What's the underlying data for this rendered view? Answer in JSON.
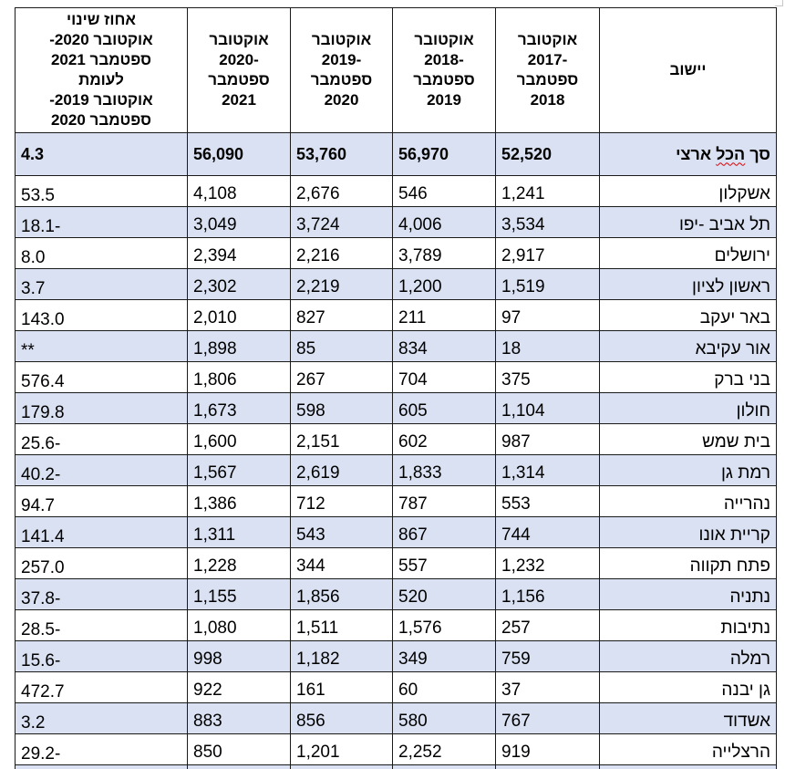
{
  "headers": {
    "locality": "יישוב",
    "p2017": [
      "אוקטובר",
      "-2017",
      "ספטמבר",
      "2018"
    ],
    "p2018": [
      "אוקטובר",
      "-2018",
      "ספטמבר",
      "2019"
    ],
    "p2019": [
      "אוקטובר",
      "-2019",
      "ספטמבר",
      "2020"
    ],
    "p2020": [
      "אוקטובר",
      "-2020",
      "ספטמבר",
      "2021"
    ],
    "change": [
      "אחוז שינוי",
      "אוקטובר 2020-",
      "ספטמבר 2021",
      "לעומת",
      "אוקטובר 2019-",
      "ספטמבר 2020"
    ]
  },
  "total": {
    "label_pre": "סך ",
    "label_squiggle": "הכל",
    "label_post": " ארצי",
    "p2017": "52,520",
    "p2018": "56,970",
    "p2019": "53,760",
    "p2020": "56,090",
    "change": "4.3"
  },
  "rows": [
    {
      "name": "אשקלון",
      "p2017": "1,241",
      "p2018": "546",
      "p2019": "2,676",
      "p2020": "4,108",
      "change": "53.5",
      "shaded": false
    },
    {
      "name": "תל אביב -יפו",
      "p2017": "3,534",
      "p2018": "4,006",
      "p2019": "3,724",
      "p2020": "3,049",
      "change": "-18.1",
      "shaded": true
    },
    {
      "name": "ירושלים",
      "p2017": "2,917",
      "p2018": "3,789",
      "p2019": "2,216",
      "p2020": "2,394",
      "change": "8.0",
      "shaded": false
    },
    {
      "name": "ראשון לציון",
      "p2017": "1,519",
      "p2018": "1,200",
      "p2019": "2,219",
      "p2020": "2,302",
      "change": "3.7",
      "shaded": true
    },
    {
      "name": "באר יעקב",
      "p2017": "97",
      "p2018": "211",
      "p2019": "827",
      "p2020": "2,010",
      "change": "143.0",
      "shaded": false
    },
    {
      "name": "אור עקיבא",
      "p2017": "18",
      "p2018": "834",
      "p2019": "85",
      "p2020": "1,898",
      "change": "**",
      "shaded": true
    },
    {
      "name": "בני ברק",
      "p2017": "375",
      "p2018": "704",
      "p2019": "267",
      "p2020": "1,806",
      "change": "576.4",
      "shaded": false
    },
    {
      "name": "חולון",
      "p2017": "1,104",
      "p2018": "605",
      "p2019": "598",
      "p2020": "1,673",
      "change": "179.8",
      "shaded": true
    },
    {
      "name": "בית שמש",
      "p2017": "987",
      "p2018": "602",
      "p2019": "2,151",
      "p2020": "1,600",
      "change": "-25.6",
      "shaded": false
    },
    {
      "name": "רמת גן",
      "p2017": "1,314",
      "p2018": "1,833",
      "p2019": "2,619",
      "p2020": "1,567",
      "change": "-40.2",
      "shaded": true
    },
    {
      "name": "נהרייה",
      "p2017": "553",
      "p2018": "787",
      "p2019": "712",
      "p2020": "1,386",
      "change": "94.7",
      "shaded": false
    },
    {
      "name": "קריית אונו",
      "p2017": "744",
      "p2018": "867",
      "p2019": "543",
      "p2020": "1,311",
      "change": "141.4",
      "shaded": true
    },
    {
      "name": "פתח תקווה",
      "p2017": "1,232",
      "p2018": "557",
      "p2019": "344",
      "p2020": "1,228",
      "change": "257.0",
      "shaded": false
    },
    {
      "name": "נתניה",
      "p2017": "1,156",
      "p2018": "520",
      "p2019": "1,856",
      "p2020": "1,155",
      "change": "-37.8",
      "shaded": true
    },
    {
      "name": "נתיבות",
      "p2017": "257",
      "p2018": "1,576",
      "p2019": "1,511",
      "p2020": "1,080",
      "change": "-28.5",
      "shaded": false
    },
    {
      "name": "רמלה",
      "p2017": "759",
      "p2018": "349",
      "p2019": "1,182",
      "p2020": "998",
      "change": "-15.6",
      "shaded": true
    },
    {
      "name": "גן יבנה",
      "p2017": "37",
      "p2018": "60",
      "p2019": "161",
      "p2020": "922",
      "change": "472.7",
      "shaded": false
    },
    {
      "name": "אשדוד",
      "p2017": "767",
      "p2018": "580",
      "p2019": "856",
      "p2020": "883",
      "change": "3.2",
      "shaded": true
    },
    {
      "name": "הרצלייה",
      "p2017": "919",
      "p2018": "2,252",
      "p2019": "1,201",
      "p2020": "850",
      "change": "-29.2",
      "shaded": false
    }
  ],
  "colors": {
    "shade": "#d9e1f2",
    "border": "#1a1a1a",
    "spellcheck": "#e00000"
  }
}
